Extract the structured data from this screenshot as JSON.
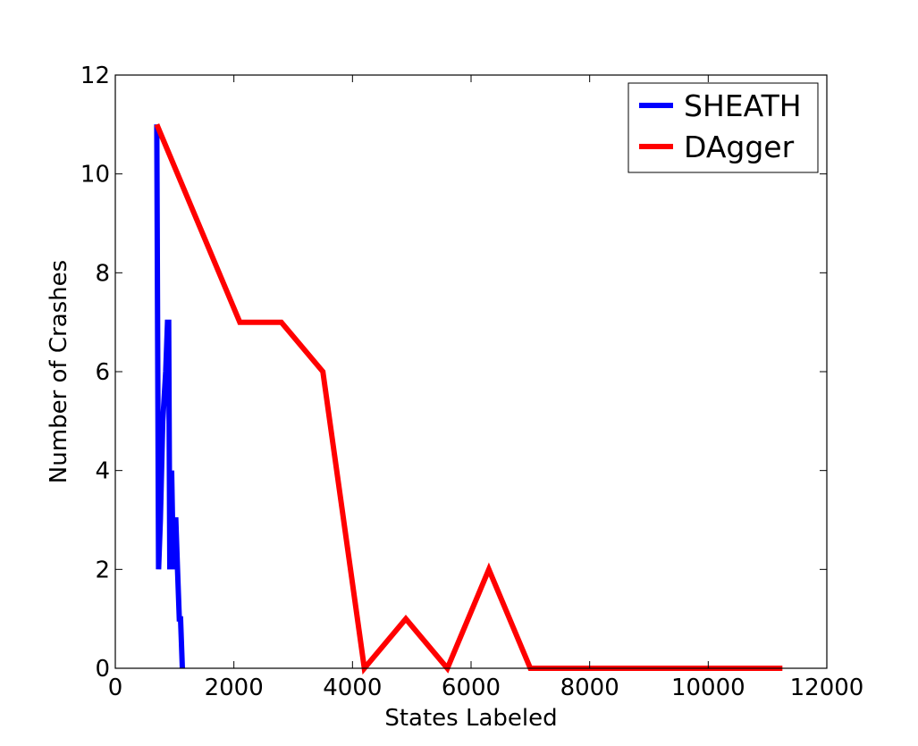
{
  "chart_data": {
    "type": "line",
    "title": "",
    "xlabel": "States Labeled",
    "ylabel": "Number of Crashes",
    "xlim": [
      0,
      12000
    ],
    "ylim": [
      0,
      12
    ],
    "xticks": [
      0,
      2000,
      4000,
      6000,
      8000,
      10000,
      12000
    ],
    "yticks": [
      0,
      2,
      4,
      6,
      8,
      10,
      12
    ],
    "grid": false,
    "legend_position": "top-right",
    "series": [
      {
        "name": "SHEATH",
        "color": "#0000ff",
        "x": [
          700,
          730,
          760,
          800,
          850,
          880,
          900,
          920,
          950,
          980,
          1000,
          1020,
          1050,
          1080,
          1100,
          1130
        ],
        "y": [
          11,
          2,
          3,
          5,
          6,
          7,
          7,
          2,
          4,
          2,
          3,
          3,
          2,
          1,
          1,
          0
        ]
      },
      {
        "name": "DAgger",
        "color": "#ff0000",
        "x": [
          700,
          2100,
          2800,
          3500,
          4200,
          4900,
          5600,
          6300,
          7000,
          7700,
          8400,
          9100,
          9800,
          10500,
          11250
        ],
        "y": [
          11,
          7,
          7,
          6,
          0,
          1,
          0,
          2,
          0,
          0,
          0,
          0,
          0,
          0,
          0
        ]
      }
    ]
  }
}
